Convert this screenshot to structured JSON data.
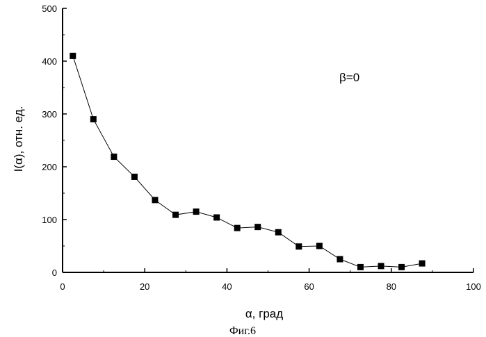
{
  "chart_data": {
    "type": "line",
    "xlabel": "α, град",
    "ylabel": "I(α), отн. ед.",
    "xlim": [
      0,
      100
    ],
    "ylim": [
      0,
      500
    ],
    "xticks": [
      0,
      20,
      40,
      60,
      80,
      100
    ],
    "yticks": [
      0,
      100,
      200,
      300,
      400,
      500
    ],
    "grid": false,
    "marker": "square",
    "annotation": "β=0",
    "caption": "Фиг.6",
    "series": [
      {
        "x": [
          2.5,
          7.5,
          12.5,
          17.5,
          22.5,
          27.5,
          32.5,
          37.5,
          42.5,
          47.5,
          52.5,
          57.5,
          62.5,
          67.5,
          72.5,
          77.5,
          82.5,
          87.5
        ],
        "y": [
          410,
          290,
          219,
          181,
          137,
          109,
          115,
          104,
          84,
          86,
          76,
          49,
          50,
          25,
          10,
          12,
          10,
          17
        ]
      }
    ]
  }
}
